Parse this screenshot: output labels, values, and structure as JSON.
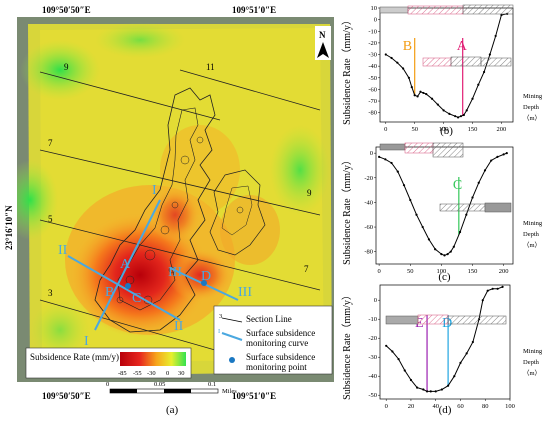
{
  "map": {
    "coords": {
      "top_left": "109°50′50″E",
      "top_right": "109°51′0″E",
      "bottom_left": "109°50′50″E",
      "bottom_right": "109°51′0″E",
      "left": "23°16′10″N"
    },
    "north_label": "N",
    "section_numbers": [
      "9",
      "11",
      "7",
      "9",
      "5",
      "7",
      "3"
    ],
    "curve_labels": [
      "I",
      "I",
      "II",
      "II",
      "III",
      "III"
    ],
    "point_labels": [
      "A",
      "B",
      "C",
      "D"
    ],
    "legend": {
      "section_line_number": "3",
      "section_line": "Section Line",
      "curve_marker": "I",
      "monitoring_curve_1": "Surface subsidence",
      "monitoring_curve_2": "monitoring curve",
      "monitoring_point_1": "Surface subsidence",
      "monitoring_point_2": "monitoring point"
    },
    "colorbar": {
      "title": "Subsidence Rate (mm/y)",
      "ticks": [
        "-85",
        "-55",
        "-30",
        "0",
        "30"
      ],
      "colors": [
        "#b8000a",
        "#e7271e",
        "#f7a41c",
        "#e8ef2e",
        "#34e24e"
      ]
    },
    "scalebar": {
      "ticks": [
        "0",
        "0.05",
        "0.1"
      ],
      "unit": "Miles"
    },
    "panel_label": "(a)"
  },
  "chart_data": [
    {
      "type": "line",
      "panel_label": "(b)",
      "ylabel": "Subsidence Rate（mm/y）",
      "right_label": [
        "Mining",
        "Depth",
        "（m）"
      ],
      "xlim": [
        -10,
        220
      ],
      "ylim": [
        -88,
        10
      ],
      "x_ticks": [
        "0",
        "50",
        "100",
        "150",
        "200"
      ],
      "y_ticks": [
        "10",
        "0",
        "-10",
        "-20",
        "-30",
        "-40",
        "-50",
        "-60",
        "-70",
        "-80"
      ],
      "markers": [
        {
          "label": "B",
          "x": 50,
          "color": "#f39c12"
        },
        {
          "label": "A",
          "x": 133,
          "color": "#e11d74"
        }
      ],
      "series": [
        {
          "x": [
            0,
            10,
            20,
            30,
            40,
            45,
            50,
            55,
            60,
            65,
            70,
            80,
            90,
            100,
            110,
            120,
            125,
            130,
            135,
            140,
            150,
            160,
            170,
            180,
            190,
            200,
            210
          ],
          "values": [
            -30,
            -33,
            -37,
            -42,
            -50,
            -58,
            -65,
            -66,
            -62,
            -63,
            -64,
            -68,
            -73,
            -78,
            -81,
            -83,
            -84,
            -83,
            -82,
            -78,
            -68,
            -56,
            -45,
            -30,
            -14,
            4,
            5
          ]
        }
      ]
    },
    {
      "type": "line",
      "panel_label": "(c)",
      "ylabel": "Subsidence Rate（mm/y）",
      "right_label": [
        "Mining",
        "Depth",
        "（m）"
      ],
      "xlim": [
        -5,
        215
      ],
      "ylim": [
        -90,
        5
      ],
      "x_ticks": [
        "0",
        "50",
        "100",
        "150",
        "200"
      ],
      "y_ticks": [
        "0",
        "-20",
        "-40",
        "-60",
        "-80"
      ],
      "markers": [
        {
          "label": "C",
          "x": 128,
          "color": "#34c759"
        }
      ],
      "series": [
        {
          "x": [
            0,
            10,
            20,
            30,
            40,
            50,
            60,
            70,
            80,
            90,
            100,
            105,
            110,
            115,
            120,
            130,
            140,
            150,
            160,
            170,
            180,
            190,
            200,
            205
          ],
          "values": [
            -3,
            -5,
            -8,
            -15,
            -26,
            -38,
            -50,
            -60,
            -70,
            -78,
            -82,
            -83,
            -82,
            -80,
            -76,
            -64,
            -50,
            -36,
            -24,
            -14,
            -6,
            -3,
            -1,
            0
          ]
        }
      ]
    },
    {
      "type": "line",
      "panel_label": "(d)",
      "ylabel": "Subsidence Rate（mm/y）",
      "right_label": [
        "Mining",
        "Depth",
        "（m）"
      ],
      "xlim": [
        -5,
        100
      ],
      "ylim": [
        -52,
        8
      ],
      "x_ticks": [
        "0",
        "20",
        "40",
        "60",
        "80",
        "100"
      ],
      "y_ticks": [
        "0",
        "-10",
        "-20",
        "-30",
        "-40",
        "-50"
      ],
      "markers": [
        {
          "label": "E",
          "x": 33,
          "color": "#9b1fb0"
        },
        {
          "label": "D",
          "x": 50,
          "color": "#1fa5e0"
        }
      ],
      "series": [
        {
          "x": [
            0,
            5,
            10,
            15,
            20,
            25,
            30,
            33,
            36,
            40,
            45,
            50,
            55,
            60,
            65,
            70,
            75,
            78,
            82,
            86,
            90,
            94
          ],
          "values": [
            -24,
            -27,
            -31,
            -37,
            -42,
            -46,
            -47,
            -48,
            -48,
            -48,
            -47,
            -45,
            -40,
            -33,
            -28,
            -22,
            -10,
            0,
            5,
            6,
            6,
            7
          ]
        }
      ]
    }
  ]
}
